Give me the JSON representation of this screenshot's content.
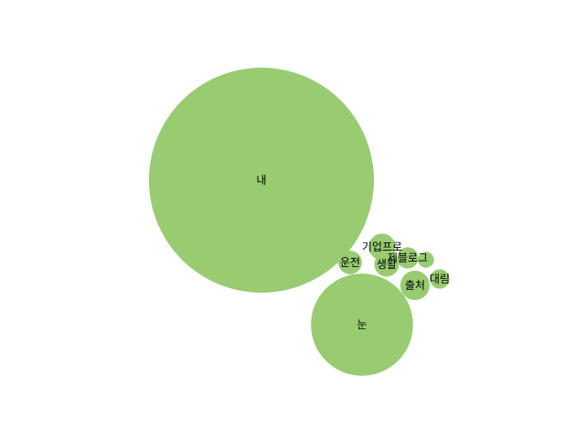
{
  "chart_data": {
    "type": "bubble",
    "title": "",
    "color": "#99cb71",
    "values": [
      {
        "label": "내",
        "value": 100
      },
      {
        "label": "눈",
        "value": 20.6
      },
      {
        "label": "기업프로",
        "value": 1.4
      },
      {
        "label": "운전",
        "value": 1.1
      },
      {
        "label": "생활",
        "value": 1.2
      },
      {
        "label": "제블로그",
        "value": 0.9
      },
      {
        "label": "출처",
        "value": 1.7
      },
      {
        "label": "대림",
        "value": 0.75
      },
      {
        "label": "",
        "value": 0.5
      }
    ]
  }
}
